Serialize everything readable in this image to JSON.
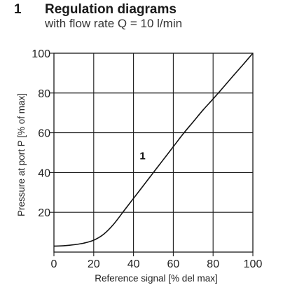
{
  "header": {
    "number": "1",
    "title": "Regulation diagrams",
    "subtitle": "with flow rate Q = 10 l/min"
  },
  "chart_data": {
    "type": "line",
    "xlabel": "Reference signal [% del max]",
    "ylabel": "Pressure at port P [% of max]",
    "xlim": [
      0,
      100
    ],
    "ylim": [
      0,
      100
    ],
    "xticks": [
      0,
      20,
      40,
      60,
      80,
      100
    ],
    "yticks": [
      20,
      40,
      60,
      80,
      100
    ],
    "grid": true,
    "series": [
      {
        "name": "1",
        "x": [
          0,
          5,
          10,
          15,
          20,
          25,
          30,
          35,
          40,
          45,
          50,
          55,
          60,
          65,
          70,
          75,
          80,
          85,
          90,
          95,
          100
        ],
        "y": [
          3,
          3.2,
          3.7,
          4.5,
          6,
          9,
          14,
          20.5,
          27,
          33.5,
          40,
          46.5,
          53,
          59.5,
          65.5,
          71.5,
          77,
          82.7,
          88.5,
          94.2,
          100
        ]
      }
    ],
    "annotations": [
      {
        "text": "1",
        "x": 53,
        "y": 46
      }
    ],
    "colors": {
      "line": "#111111",
      "grid": "#1a1a1a",
      "text": "#222222"
    }
  }
}
